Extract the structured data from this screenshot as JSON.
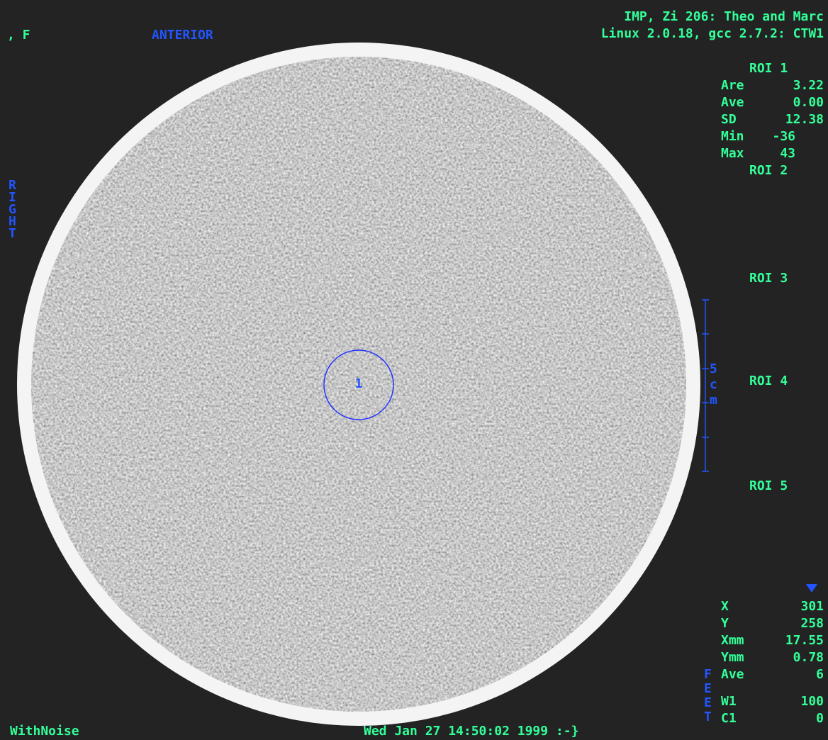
{
  "header": {
    "left": ", F",
    "orientation_top": "ANTERIOR",
    "line1": "IMP, Zi 206: Theo and Marc",
    "line2": "Linux 2.0.18, gcc 2.7.2: CTW1"
  },
  "orientation": {
    "left": "RIGHT",
    "bottom": "FEET"
  },
  "roi_panel": {
    "rois": [
      "ROI 1",
      "ROI 2",
      "ROI 3",
      "ROI 4",
      "ROI 5"
    ],
    "roi1_stats": [
      {
        "label": "Are",
        "value": "3.22"
      },
      {
        "label": "Ave",
        "value": "0.00"
      },
      {
        "label": "SD",
        "value": "12.38"
      },
      {
        "label": "Min",
        "value": "-36"
      },
      {
        "label": "Max",
        "value": "43"
      }
    ]
  },
  "scale": {
    "label": "5cm"
  },
  "image": {
    "roi_marker": "1"
  },
  "cursor_panel": [
    {
      "label": "X",
      "value": "301"
    },
    {
      "label": "Y",
      "value": "258"
    },
    {
      "label": "Xmm",
      "value": "17.55"
    },
    {
      "label": "Ymm",
      "value": "0.78"
    },
    {
      "label": "Ave",
      "value": "6"
    },
    {
      "label": "W1",
      "value": "100"
    },
    {
      "label": "C1",
      "value": "0"
    }
  ],
  "footer": {
    "series": "WithNoise",
    "timestamp": "Wed Jan 27 14:50:02 1999 :-}"
  }
}
